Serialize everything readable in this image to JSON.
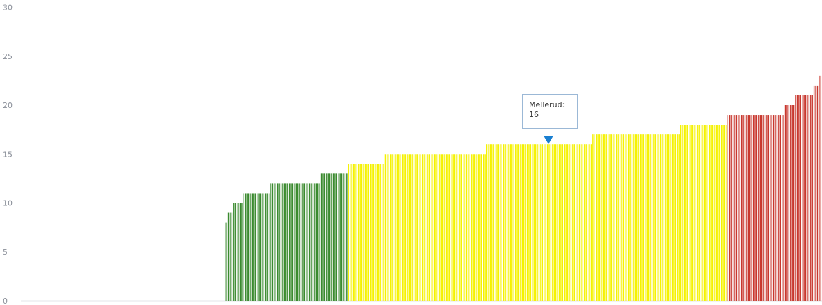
{
  "chart_data": {
    "type": "bar",
    "title": "",
    "xlabel": "",
    "ylabel": "",
    "ylim": [
      0,
      30
    ],
    "yticks": [
      "0",
      "5",
      "10",
      "15",
      "20",
      "25",
      "30"
    ],
    "grid": false,
    "legend": "none",
    "colors": {
      "low": "#3a8a2e",
      "mid": "#f5f200",
      "high": "#c8372d"
    },
    "groups": [
      {
        "color_key": "low",
        "values": [
          8,
          8,
          9,
          9,
          9,
          10,
          10,
          10,
          10,
          10,
          10,
          11,
          11,
          11,
          11,
          11,
          11,
          11,
          11,
          11,
          11,
          11,
          11,
          11,
          11,
          11,
          11,
          12,
          12,
          12,
          12,
          12,
          12,
          12,
          12,
          12,
          12,
          12,
          12,
          12,
          12,
          12,
          12,
          12,
          12,
          12,
          12,
          12,
          12,
          12,
          12,
          12,
          12,
          12,
          12,
          12,
          12,
          13,
          13,
          13,
          13,
          13,
          13,
          13,
          13,
          13,
          13,
          13,
          13,
          13,
          13,
          13,
          13
        ]
      },
      {
        "color_key": "mid",
        "values": [
          14,
          14,
          14,
          14,
          14,
          14,
          14,
          14,
          14,
          14,
          14,
          14,
          14,
          14,
          14,
          14,
          14,
          14,
          14,
          14,
          14,
          14,
          15,
          15,
          15,
          15,
          15,
          15,
          15,
          15,
          15,
          15,
          15,
          15,
          15,
          15,
          15,
          15,
          15,
          15,
          15,
          15,
          15,
          15,
          15,
          15,
          15,
          15,
          15,
          15,
          15,
          15,
          15,
          15,
          15,
          15,
          15,
          15,
          15,
          15,
          15,
          15,
          15,
          15,
          15,
          15,
          15,
          15,
          15,
          15,
          15,
          15,
          15,
          15,
          15,
          15,
          15,
          15,
          15,
          15,
          15,
          15,
          16,
          16,
          16,
          16,
          16,
          16,
          16,
          16,
          16,
          16,
          16,
          16,
          16,
          16,
          16,
          16,
          16,
          16,
          16,
          16,
          16,
          16,
          16,
          16,
          16,
          16,
          16,
          16,
          16,
          16,
          16,
          16,
          16,
          16,
          16,
          16,
          16,
          16,
          16,
          16,
          16,
          16,
          16,
          16,
          16,
          16,
          16,
          16,
          16,
          16,
          16,
          16,
          16,
          16,
          16,
          16,
          16,
          16,
          16,
          16,
          16,
          16,
          16,
          17,
          17,
          17,
          17,
          17,
          17,
          17,
          17,
          17,
          17,
          17,
          17,
          17,
          17,
          17,
          17,
          17,
          17,
          17,
          17,
          17,
          17,
          17,
          17,
          17,
          17,
          17,
          17,
          17,
          17,
          17,
          17,
          17,
          17,
          17,
          17,
          17,
          17,
          17,
          17,
          17,
          17,
          17,
          17,
          17,
          17,
          17,
          17,
          17,
          17,
          17,
          17,
          18,
          18,
          18,
          18,
          18,
          18,
          18,
          18,
          18,
          18,
          18,
          18,
          18,
          18,
          18,
          18,
          18,
          18,
          18,
          18,
          18,
          18,
          18,
          18,
          18,
          18,
          18,
          18
        ]
      },
      {
        "color_key": "high",
        "values": [
          19,
          19,
          19,
          19,
          19,
          19,
          19,
          19,
          19,
          19,
          19,
          19,
          19,
          19,
          19,
          19,
          19,
          19,
          19,
          19,
          19,
          19,
          19,
          19,
          19,
          19,
          19,
          19,
          19,
          19,
          19,
          19,
          19,
          19,
          20,
          20,
          20,
          20,
          20,
          20,
          21,
          21,
          21,
          21,
          21,
          21,
          21,
          21,
          21,
          21,
          21,
          22,
          22,
          22,
          23,
          23
        ]
      }
    ],
    "tooltip": {
      "label": "Mellerud:",
      "value": "16"
    }
  }
}
